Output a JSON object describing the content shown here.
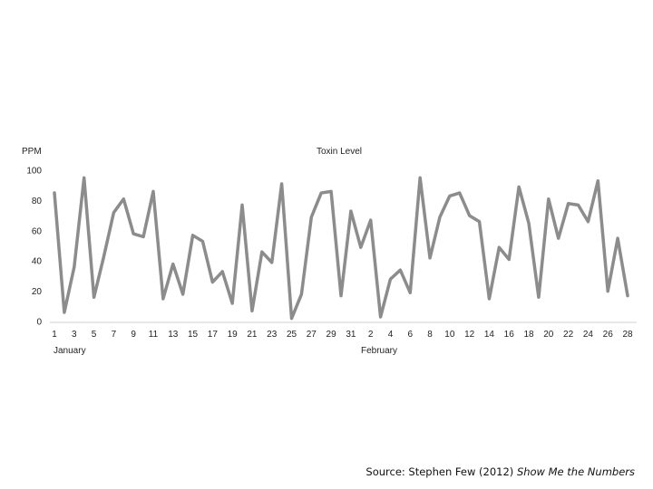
{
  "chart_data": {
    "type": "line",
    "title": "Toxin Level",
    "ylabel": "PPM",
    "xlabel": "",
    "ylim": [
      0,
      100
    ],
    "yticks": [
      0,
      20,
      40,
      60,
      80,
      100
    ],
    "grid": false,
    "x_tick_labels": [
      "1",
      "3",
      "5",
      "7",
      "9",
      "11",
      "13",
      "15",
      "17",
      "19",
      "21",
      "23",
      "25",
      "27",
      "29",
      "31",
      "2",
      "4",
      "6",
      "8",
      "10",
      "12",
      "14",
      "16",
      "18",
      "20",
      "22",
      "24",
      "26",
      "28"
    ],
    "month_labels": [
      "January",
      "February"
    ],
    "line_color": "#8c8c8c",
    "series": [
      {
        "values": [
          85,
          6,
          36,
          95,
          16,
          43,
          72,
          81,
          58,
          56,
          86,
          15,
          38,
          18,
          57,
          53,
          26,
          33,
          12,
          77,
          7,
          46,
          39,
          91,
          2,
          18,
          69,
          85,
          86,
          17,
          73,
          49,
          67,
          3,
          28,
          34,
          19,
          95,
          42,
          69,
          83,
          85,
          70,
          66,
          15,
          49,
          41,
          89,
          65,
          16,
          81,
          55,
          78,
          77,
          66,
          93,
          20,
          55,
          17
        ]
      }
    ]
  },
  "source": {
    "prefix": "Source: Stephen Few (2012) ",
    "title": "Show Me the Numbers"
  }
}
